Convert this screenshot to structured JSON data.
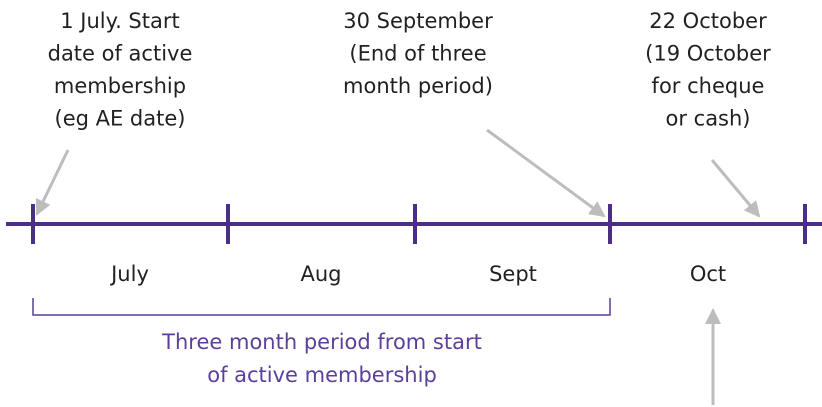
{
  "annotations": [
    {
      "lines": [
        "1 July. Start",
        "date of active",
        "membership",
        "(eg AE date)"
      ]
    },
    {
      "lines": [
        "30 September",
        "(End of three",
        "month period)"
      ]
    },
    {
      "lines": [
        "22 October",
        "(19 October",
        "for cheque",
        "or cash)"
      ]
    }
  ],
  "months": [
    "July",
    "Aug",
    "Sept",
    "Oct"
  ],
  "bracket": {
    "lines": [
      "Three month period from start",
      "of active membership"
    ]
  }
}
